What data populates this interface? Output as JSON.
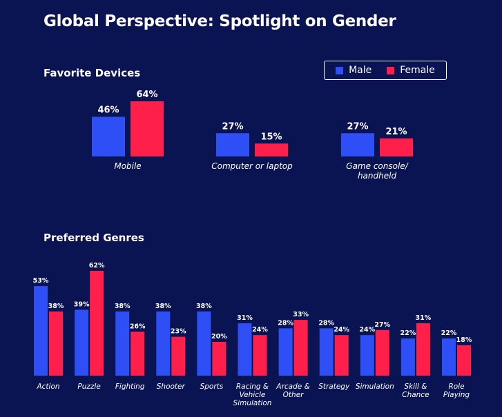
{
  "title": "Global Perspective: Spotlight on Gender",
  "colors": {
    "male": "#2d4ff5",
    "female": "#ff1f4b",
    "background": "#0a1452",
    "text": "#ffffff"
  },
  "legend": {
    "male": "Male",
    "female": "Female"
  },
  "devices_title": "Favorite Devices",
  "genres_title": "Preferred Genres",
  "chart_data": [
    {
      "type": "bar",
      "title": "Favorite Devices",
      "categories": [
        "Mobile",
        "Computer or laptop",
        "Game console/\nhandheld"
      ],
      "series": [
        {
          "name": "Male",
          "values": [
            46,
            27,
            27
          ]
        },
        {
          "name": "Female",
          "values": [
            64,
            15,
            21
          ]
        }
      ],
      "value_suffix": "%",
      "legend": "top-right",
      "grid": false,
      "ylim": [
        0,
        64
      ]
    },
    {
      "type": "bar",
      "title": "Preferred Genres",
      "categories": [
        "Action",
        "Puzzle",
        "Fighting",
        "Shooter",
        "Sports",
        "Racing &\nVehicle\nSimulation",
        "Arcade &\nOther",
        "Strategy",
        "Simulation",
        "Skill &\nChance",
        "Role\nPlaying"
      ],
      "series": [
        {
          "name": "Male",
          "values": [
            53,
            39,
            38,
            38,
            38,
            31,
            28,
            28,
            24,
            22,
            22
          ]
        },
        {
          "name": "Female",
          "values": [
            38,
            62,
            26,
            23,
            20,
            24,
            33,
            24,
            27,
            31,
            18
          ]
        }
      ],
      "value_suffix": "%",
      "grid": false,
      "ylim": [
        0,
        62
      ]
    }
  ]
}
